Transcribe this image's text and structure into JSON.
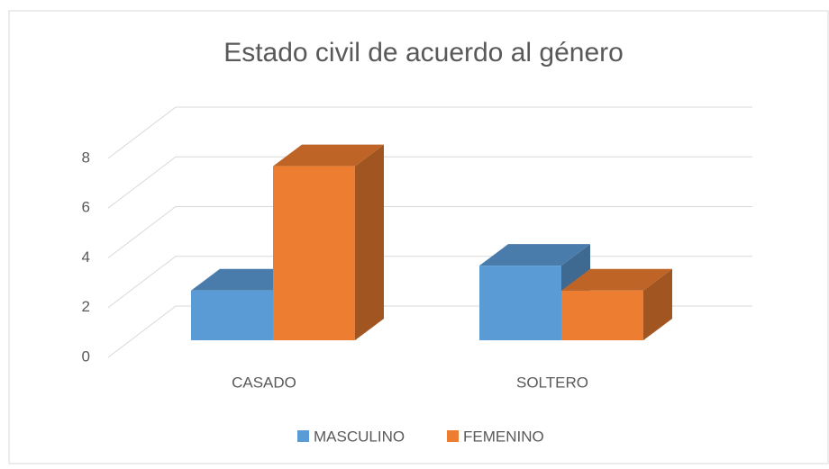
{
  "chart_data": {
    "type": "bar3d",
    "title": "Estado civil de acuerdo al género",
    "categories": [
      "CASADO",
      "SOLTERO"
    ],
    "series": [
      {
        "name": "MASCULINO",
        "color": "#5b9bd5",
        "values": [
          2,
          3
        ]
      },
      {
        "name": "FEMENINO",
        "color": "#ed7d31",
        "values": [
          7,
          2
        ]
      }
    ],
    "ylim": [
      0,
      8
    ],
    "yticks": [
      0,
      2,
      4,
      6,
      8
    ],
    "grid": true,
    "legend": "bottom"
  }
}
